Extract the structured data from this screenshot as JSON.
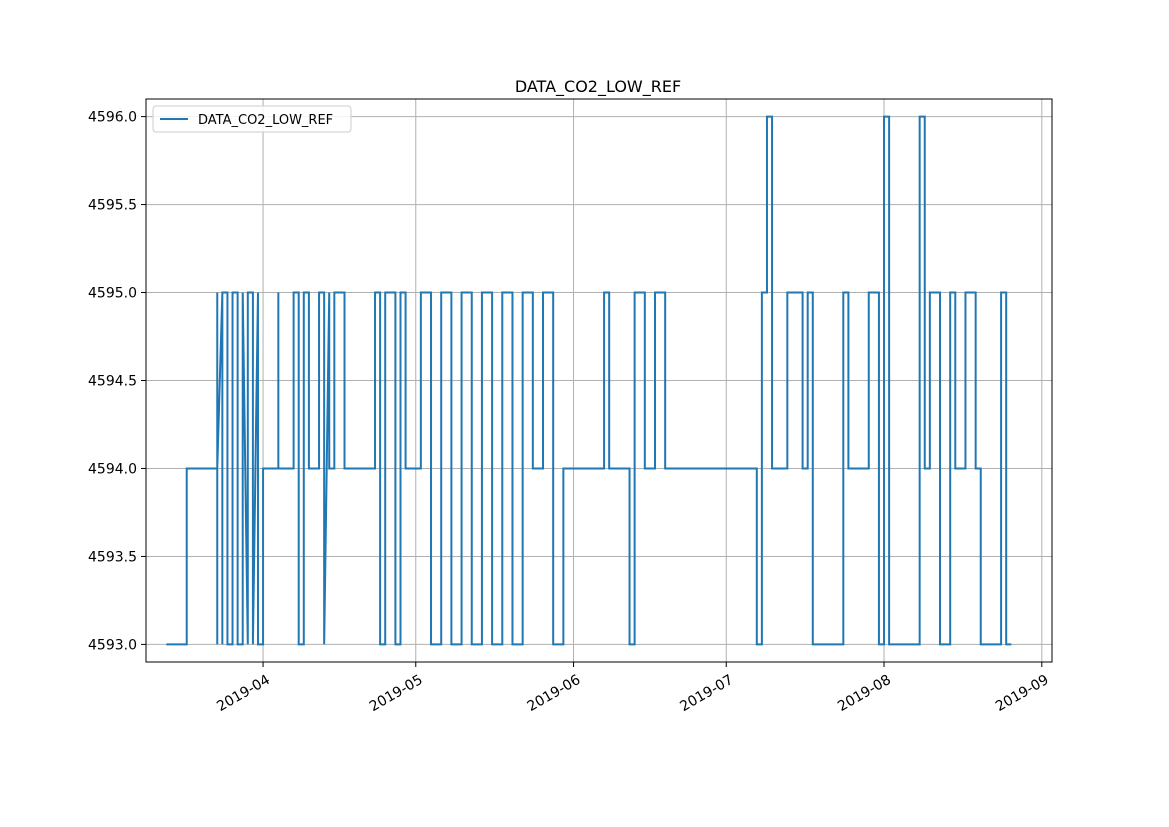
{
  "chart_data": {
    "type": "line",
    "title": "DATA_CO2_LOW_REF",
    "xlabel": "",
    "ylabel": "",
    "x_axis_type": "date",
    "xlim": [
      "2019-03-09",
      "2019-09-03"
    ],
    "ylim": [
      4592.9,
      4596.1
    ],
    "xticks": [
      {
        "date": "2019-04-01",
        "label": "2019-04"
      },
      {
        "date": "2019-05-01",
        "label": "2019-05"
      },
      {
        "date": "2019-06-01",
        "label": "2019-06"
      },
      {
        "date": "2019-07-01",
        "label": "2019-07"
      },
      {
        "date": "2019-08-01",
        "label": "2019-08"
      },
      {
        "date": "2019-09-01",
        "label": "2019-09"
      }
    ],
    "yticks": [
      {
        "value": 4593.0,
        "label": "4593.0"
      },
      {
        "value": 4593.5,
        "label": "4593.5"
      },
      {
        "value": 4594.0,
        "label": "4594.0"
      },
      {
        "value": 4594.5,
        "label": "4594.5"
      },
      {
        "value": 4595.0,
        "label": "4595.0"
      },
      {
        "value": 4595.5,
        "label": "4595.5"
      },
      {
        "value": 4596.0,
        "label": "4596.0"
      }
    ],
    "grid": true,
    "legend": {
      "placement": "upper-left",
      "entries": [
        "DATA_CO2_LOW_REF"
      ]
    },
    "series": [
      {
        "name": "DATA_CO2_LOW_REF",
        "color": "#1f77b4",
        "x": [
          "2019-03-13",
          "2019-03-17",
          "2019-03-17",
          "2019-03-23",
          "2019-03-23",
          "2019-03-23",
          "2019-03-23",
          "2019-03-24",
          "2019-03-24",
          "2019-03-24",
          "2019-03-25",
          "2019-03-25",
          "2019-03-26",
          "2019-03-26",
          "2019-03-27",
          "2019-03-27",
          "2019-03-28",
          "2019-03-28",
          "2019-03-29",
          "2019-03-29",
          "2019-03-30",
          "2019-03-30",
          "2019-03-31",
          "2019-03-31",
          "2019-04-01",
          "2019-04-01",
          "2019-04-04",
          "2019-04-04",
          "2019-04-04",
          "2019-04-07",
          "2019-04-07",
          "2019-04-08",
          "2019-04-08",
          "2019-04-09",
          "2019-04-09",
          "2019-04-10",
          "2019-04-10",
          "2019-04-12",
          "2019-04-12",
          "2019-04-13",
          "2019-04-13",
          "2019-04-14",
          "2019-04-14",
          "2019-04-15",
          "2019-04-15",
          "2019-04-17",
          "2019-04-17",
          "2019-04-23",
          "2019-04-23",
          "2019-04-24",
          "2019-04-24",
          "2019-04-25",
          "2019-04-25",
          "2019-04-27",
          "2019-04-27",
          "2019-04-28",
          "2019-04-28",
          "2019-04-29",
          "2019-04-29",
          "2019-05-02",
          "2019-05-02",
          "2019-05-04",
          "2019-05-04",
          "2019-05-06",
          "2019-05-06",
          "2019-05-08",
          "2019-05-08",
          "2019-05-10",
          "2019-05-10",
          "2019-05-12",
          "2019-05-12",
          "2019-05-14",
          "2019-05-14",
          "2019-05-16",
          "2019-05-16",
          "2019-05-18",
          "2019-05-18",
          "2019-05-20",
          "2019-05-20",
          "2019-05-22",
          "2019-05-22",
          "2019-05-24",
          "2019-05-24",
          "2019-05-26",
          "2019-05-26",
          "2019-05-28",
          "2019-05-28",
          "2019-05-30",
          "2019-05-30",
          "2019-06-07",
          "2019-06-07",
          "2019-06-08",
          "2019-06-08",
          "2019-06-12",
          "2019-06-12",
          "2019-06-13",
          "2019-06-13",
          "2019-06-15",
          "2019-06-15",
          "2019-06-17",
          "2019-06-17",
          "2019-06-19",
          "2019-06-19",
          "2019-07-07",
          "2019-07-07",
          "2019-07-08",
          "2019-07-08",
          "2019-07-09",
          "2019-07-09",
          "2019-07-10",
          "2019-07-10",
          "2019-07-13",
          "2019-07-13",
          "2019-07-16",
          "2019-07-16",
          "2019-07-17",
          "2019-07-17",
          "2019-07-18",
          "2019-07-18",
          "2019-07-24",
          "2019-07-24",
          "2019-07-25",
          "2019-07-25",
          "2019-07-29",
          "2019-07-29",
          "2019-07-31",
          "2019-07-31",
          "2019-08-01",
          "2019-08-01",
          "2019-08-02",
          "2019-08-02",
          "2019-08-08",
          "2019-08-08",
          "2019-08-09",
          "2019-08-09",
          "2019-08-10",
          "2019-08-10",
          "2019-08-12",
          "2019-08-12",
          "2019-08-14",
          "2019-08-14",
          "2019-08-15",
          "2019-08-15",
          "2019-08-17",
          "2019-08-17",
          "2019-08-19",
          "2019-08-19",
          "2019-08-20",
          "2019-08-20",
          "2019-08-24",
          "2019-08-24",
          "2019-08-25",
          "2019-08-25",
          "2019-08-26"
        ],
        "y": [
          4593,
          4593,
          4594,
          4594,
          4593,
          4595,
          4594,
          4595,
          4593,
          4595,
          4595,
          4593,
          4593,
          4595,
          4595,
          4593,
          4593,
          4595,
          4593,
          4595,
          4595,
          4593,
          4595,
          4593,
          4593,
          4594,
          4594,
          4595,
          4594,
          4594,
          4595,
          4595,
          4593,
          4593,
          4595,
          4595,
          4594,
          4594,
          4595,
          4595,
          4593,
          4595,
          4594,
          4594,
          4595,
          4595,
          4594,
          4594,
          4595,
          4595,
          4593,
          4593,
          4595,
          4595,
          4593,
          4593,
          4595,
          4595,
          4594,
          4594,
          4595,
          4595,
          4593,
          4593,
          4595,
          4595,
          4593,
          4593,
          4595,
          4595,
          4593,
          4593,
          4595,
          4595,
          4593,
          4593,
          4595,
          4595,
          4593,
          4593,
          4595,
          4595,
          4594,
          4594,
          4595,
          4595,
          4593,
          4593,
          4594,
          4594,
          4595,
          4595,
          4594,
          4594,
          4593,
          4593,
          4595,
          4595,
          4594,
          4594,
          4595,
          4595,
          4594,
          4594,
          4593,
          4593,
          4595,
          4595,
          4596,
          4596,
          4594,
          4594,
          4595,
          4595,
          4594,
          4594,
          4595,
          4595,
          4593,
          4593,
          4595,
          4595,
          4594,
          4594,
          4595,
          4595,
          4593,
          4593,
          4596,
          4596,
          4593,
          4593,
          4596,
          4596,
          4594,
          4594,
          4595,
          4595,
          4593,
          4593,
          4595,
          4595,
          4594,
          4594,
          4595,
          4595,
          4594,
          4594,
          4593,
          4593,
          4595,
          4595,
          4593,
          4593
        ]
      }
    ]
  }
}
